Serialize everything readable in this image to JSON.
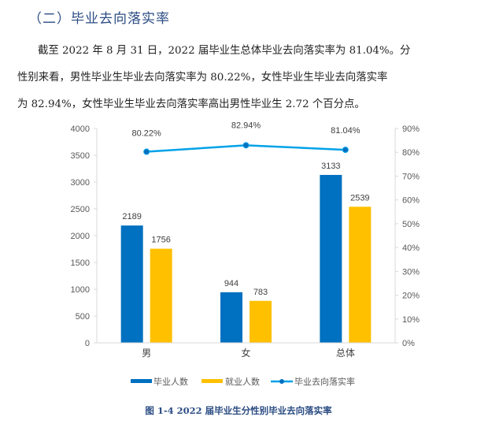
{
  "heading": "（二）毕业去向落实率",
  "paragraph": {
    "line1": "截至 2022 年 8 月 31 日，2022 届毕业生总体毕业去向落实率为 81.04%。分",
    "line2": "性别来看，男性毕业生毕业去向落实率为 80.22%，女性毕业生毕业去向落实率",
    "line3": "为 82.94%，女性毕业生毕业去向落实率高出男性毕业生 2.72 个百分点。"
  },
  "caption": "图 1-4 2022 届毕业生分性别毕业去向落实率",
  "colors": {
    "graduates": "#0070C0",
    "employed": "#FFC000",
    "rate": "#00A2E8",
    "axis": "#D9D9D9",
    "tick_text": "#595959"
  },
  "chart_data": {
    "type": "bar",
    "title": "图 1-4 2022 届毕业生分性别毕业去向落实率",
    "categories": [
      "男",
      "女",
      "总体"
    ],
    "series": [
      {
        "name": "毕业人数",
        "type": "bar",
        "axis": "left",
        "values": [
          2189,
          944,
          3133
        ]
      },
      {
        "name": "就业人数",
        "type": "bar",
        "axis": "left",
        "values": [
          1756,
          783,
          2539
        ]
      },
      {
        "name": "毕业去向落实率",
        "type": "line",
        "axis": "right",
        "values": [
          80.22,
          82.94,
          81.04
        ],
        "labels": [
          "80.22%",
          "82.94%",
          "81.04%"
        ]
      }
    ],
    "left_axis": {
      "ticks": [
        "0",
        "500",
        "1000",
        "1500",
        "2000",
        "2500",
        "3000",
        "3500",
        "4000"
      ],
      "ylim": [
        0,
        4000
      ]
    },
    "right_axis": {
      "ticks": [
        "0%",
        "10%",
        "20%",
        "30%",
        "40%",
        "50%",
        "60%",
        "70%",
        "80%",
        "90%"
      ],
      "ylim": [
        0,
        90
      ]
    },
    "legend": {
      "position": "bottom",
      "entries": [
        "毕业人数",
        "就业人数",
        "毕业去向落实率"
      ]
    },
    "grid": false
  }
}
